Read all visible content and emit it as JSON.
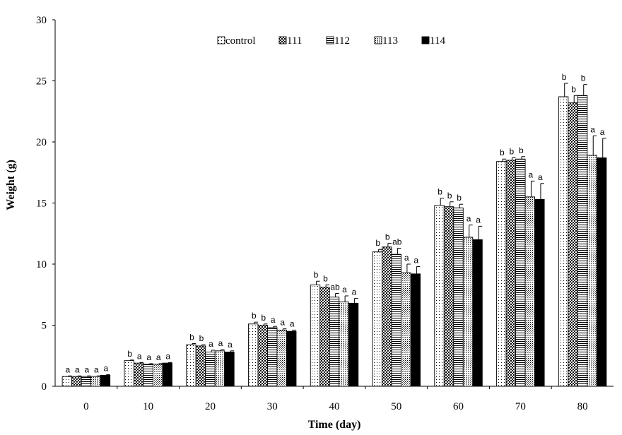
{
  "chart_data": {
    "type": "bar",
    "xlabel": "Time (day)",
    "ylabel": "Weight (g)",
    "ylim": [
      0,
      30
    ],
    "yticks": [
      0,
      5,
      10,
      15,
      20,
      25,
      30
    ],
    "categories": [
      "0",
      "10",
      "20",
      "30",
      "40",
      "50",
      "60",
      "70",
      "80"
    ],
    "legend_position": "top-center",
    "series": [
      {
        "name": "control",
        "pattern": "dots-sparse",
        "values": [
          0.8,
          2.1,
          3.4,
          5.1,
          8.3,
          11.0,
          14.8,
          18.4,
          23.7
        ],
        "errors": [
          0.05,
          0.05,
          0.1,
          0.15,
          0.3,
          0.2,
          0.6,
          0.2,
          1.1
        ],
        "labels": [
          "a",
          "b",
          "b",
          "b",
          "b",
          "b",
          "b",
          "b",
          "b"
        ]
      },
      {
        "name": "111",
        "pattern": "checker",
        "values": [
          0.8,
          1.9,
          3.3,
          5.0,
          8.1,
          11.4,
          14.7,
          18.5,
          23.2
        ],
        "errors": [
          0.05,
          0.05,
          0.1,
          0.1,
          0.2,
          0.3,
          0.4,
          0.2,
          0.6
        ],
        "labels": [
          "a",
          "a",
          "b",
          "b",
          "b",
          "b",
          "b",
          "b",
          "b"
        ]
      },
      {
        "name": "112",
        "pattern": "hlines",
        "values": [
          0.8,
          1.8,
          2.8,
          4.8,
          7.3,
          10.8,
          14.6,
          18.6,
          23.8
        ],
        "errors": [
          0.05,
          0.05,
          0.15,
          0.1,
          0.3,
          0.5,
          0.3,
          0.2,
          0.9
        ],
        "labels": [
          "a",
          "a",
          "a",
          "a",
          "ab",
          "ab",
          "b",
          "b",
          "b"
        ]
      },
      {
        "name": "113",
        "pattern": "dots-dense",
        "values": [
          0.8,
          1.8,
          2.9,
          4.6,
          6.9,
          9.3,
          12.2,
          15.5,
          18.9
        ],
        "errors": [
          0.05,
          0.05,
          0.1,
          0.1,
          0.5,
          0.7,
          1.0,
          1.3,
          1.6
        ],
        "labels": [
          "a",
          "a",
          "a",
          "a",
          "a",
          "a",
          "a",
          "a",
          "a"
        ]
      },
      {
        "name": "114",
        "pattern": "solid",
        "values": [
          0.9,
          1.9,
          2.8,
          4.5,
          6.8,
          9.2,
          12.0,
          15.3,
          18.7
        ],
        "errors": [
          0.05,
          0.05,
          0.1,
          0.1,
          0.4,
          0.6,
          1.1,
          1.3,
          1.6
        ],
        "labels": [
          "a",
          "a",
          "a",
          "a",
          "a",
          "a",
          "a",
          "a",
          "a"
        ]
      }
    ]
  }
}
